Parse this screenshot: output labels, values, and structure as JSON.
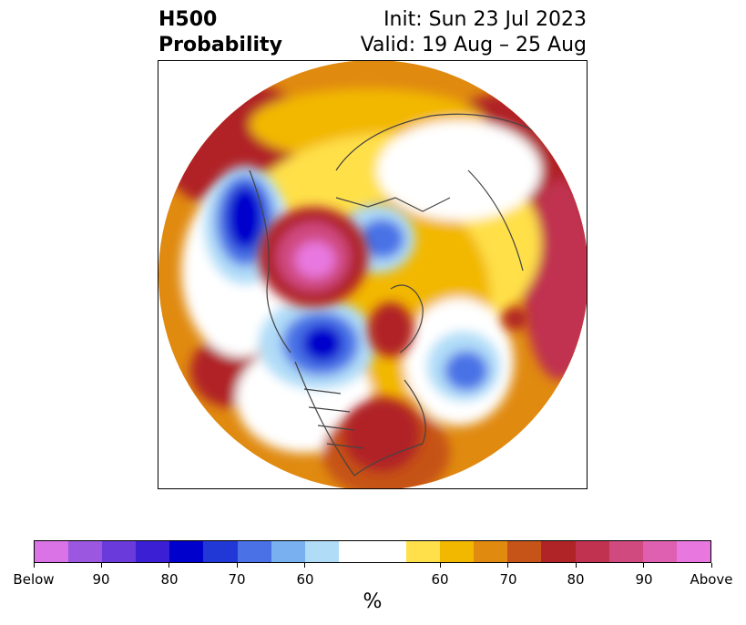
{
  "title": {
    "line1_left": "H500",
    "line2_left": "Probability",
    "line1_right": "Init: Sun 23 Jul 2023",
    "line2_right": "Valid: 19 Aug – 25 Aug"
  },
  "map": {
    "projection": "north polar stereographic",
    "background_color": "#ffffff"
  },
  "colorbar": {
    "units": "%",
    "tick_labels": [
      "Below",
      "90",
      "80",
      "70",
      "60",
      "60",
      "70",
      "80",
      "90",
      "Above"
    ],
    "below_colors": [
      "#d973e6",
      "#9b57e0",
      "#6a3adb",
      "#3a1fd4",
      "#0000cc",
      "#2238d6",
      "#4a72e6",
      "#78b0f0",
      "#b0dcf8"
    ],
    "neutral_color": "#ffffff",
    "above_colors": [
      "#ffe04a",
      "#f2b800",
      "#e08a10",
      "#c65318",
      "#b02428",
      "#c03250",
      "#d04a80",
      "#df60b0",
      "#e878e0"
    ]
  }
}
